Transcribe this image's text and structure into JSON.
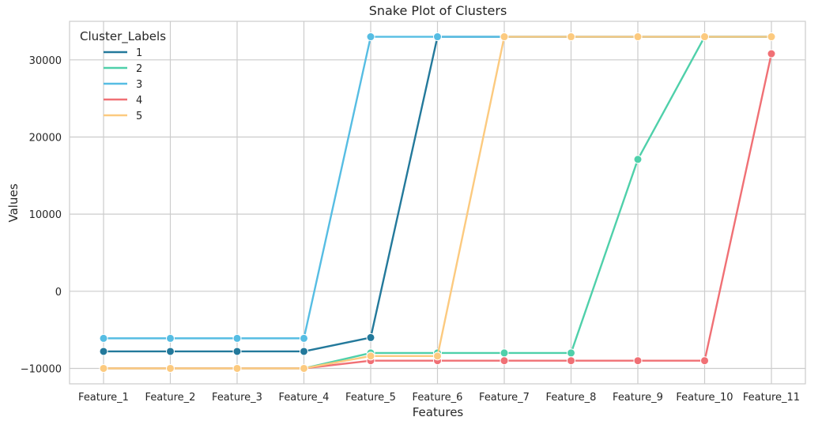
{
  "chart_data": {
    "type": "line",
    "title": "Snake Plot of Clusters",
    "xlabel": "Features",
    "ylabel": "Values",
    "categories": [
      "Feature_1",
      "Feature_2",
      "Feature_3",
      "Feature_4",
      "Feature_5",
      "Feature_6",
      "Feature_7",
      "Feature_8",
      "Feature_9",
      "Feature_10",
      "Feature_11"
    ],
    "ylim": [
      -12000,
      35000
    ],
    "yticks": [
      -10000,
      0,
      10000,
      20000,
      30000
    ],
    "ytick_labels": [
      "−10000",
      "0",
      "10000",
      "20000",
      "30000"
    ],
    "grid": true,
    "legend": {
      "title": "Cluster_Labels",
      "placement": "top-left"
    },
    "series": [
      {
        "name": "1",
        "color": "#23799b",
        "values": [
          -7800,
          -7800,
          -7800,
          -7800,
          -6000,
          33000,
          33000,
          33000,
          33000,
          33000,
          33000
        ]
      },
      {
        "name": "2",
        "color": "#4fd0aa",
        "values": [
          -10000,
          -10000,
          -10000,
          -10000,
          -8000,
          -8000,
          -8000,
          -8000,
          17100,
          33000,
          33000
        ]
      },
      {
        "name": "3",
        "color": "#56bde3",
        "values": [
          -6100,
          -6100,
          -6100,
          -6100,
          33000,
          33000,
          33000,
          33000,
          33000,
          33000,
          33000
        ]
      },
      {
        "name": "4",
        "color": "#f07075",
        "values": [
          -10000,
          -10000,
          -10000,
          -10000,
          -9000,
          -9000,
          -9000,
          -9000,
          -9000,
          -9000,
          30800
        ]
      },
      {
        "name": "5",
        "color": "#fcca7f",
        "values": [
          -10000,
          -10000,
          -10000,
          -10000,
          -8400,
          -8400,
          33000,
          33000,
          33000,
          33000,
          33000
        ]
      }
    ]
  }
}
